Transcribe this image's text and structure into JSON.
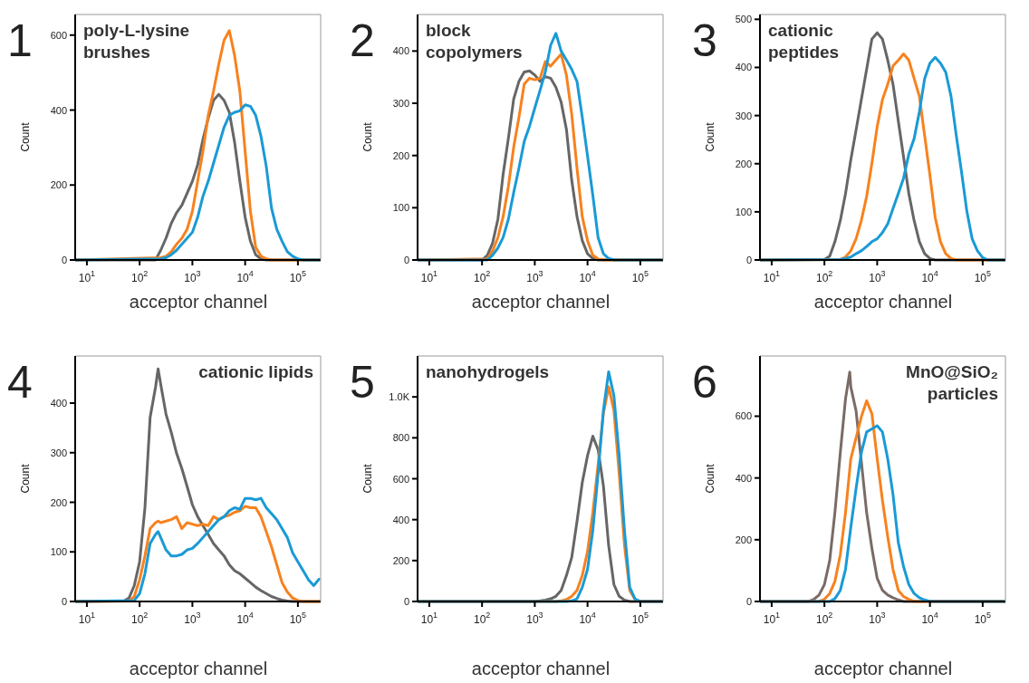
{
  "chart_data": [
    {
      "type": "line",
      "title": "poly-L-lysine brushes",
      "annotations": [
        "1"
      ],
      "xlabel": "acceptor channel",
      "ylabel": "Count",
      "log": "x",
      "xlim": [
        6,
        270000
      ],
      "ylim": [
        0,
        655
      ],
      "xticks": [
        {
          "value": 10,
          "label": "10$^{1}$"
        },
        {
          "value": 100,
          "label": "10$^{2}$"
        },
        {
          "value": 1000,
          "label": "10$^{3}$"
        },
        {
          "value": 10000,
          "label": "10$^{4}$"
        },
        {
          "value": 100000,
          "label": "10$^{5}$"
        }
      ],
      "yticks": [
        0,
        200,
        400,
        600
      ],
      "series": [
        {
          "color": "#666666",
          "x": [
            6,
            200,
            251,
            316,
            398,
            501,
            631,
            794,
            1000,
            1259,
            1585,
            1995,
            2512,
            3162,
            3981,
            5012,
            6310,
            7943,
            10000,
            12589,
            15849,
            19953,
            25119,
            270000
          ],
          "values": [
            0,
            0,
            26,
            58,
            98,
            126,
            146,
            178,
            210,
            254,
            322,
            378,
            426,
            442,
            426,
            394,
            314,
            210,
            114,
            50,
            14,
            3,
            0,
            0
          ]
        },
        {
          "color": "#f7821e",
          "x": [
            6,
            251,
            316,
            398,
            501,
            631,
            794,
            1000,
            1259,
            1585,
            1995,
            2512,
            3162,
            3981,
            5012,
            6310,
            7943,
            10000,
            12589,
            15849,
            19953,
            25119,
            31623,
            270000
          ],
          "values": [
            0,
            6,
            10,
            22,
            42,
            58,
            82,
            130,
            210,
            290,
            386,
            450,
            522,
            586,
            612,
            546,
            450,
            290,
            130,
            34,
            10,
            3,
            0,
            0
          ]
        },
        {
          "color": "#1a9ad6",
          "x": [
            6,
            251,
            316,
            398,
            501,
            631,
            794,
            1000,
            1259,
            1585,
            1995,
            2512,
            3162,
            3981,
            5012,
            6310,
            7943,
            10000,
            12589,
            15849,
            19953,
            25119,
            31623,
            39811,
            50119,
            63096,
            79433,
            100000,
            125893,
            270000
          ],
          "values": [
            0,
            3,
            6,
            14,
            26,
            42,
            58,
            74,
            114,
            170,
            210,
            258,
            306,
            354,
            386,
            394,
            398,
            414,
            410,
            386,
            330,
            250,
            138,
            82,
            50,
            22,
            10,
            3,
            0,
            0
          ]
        }
      ]
    },
    {
      "type": "line",
      "title": "block copolymers",
      "annotations": [
        "2"
      ],
      "xlabel": "acceptor channel",
      "ylabel": "Count",
      "log": "x",
      "xlim": [
        6,
        270000
      ],
      "ylim": [
        0,
        470
      ],
      "xticks": [
        {
          "value": 10,
          "label": "10$^{1}$"
        },
        {
          "value": 100,
          "label": "10$^{2}$"
        },
        {
          "value": 1000,
          "label": "10$^{3}$"
        },
        {
          "value": 10000,
          "label": "10$^{4}$"
        },
        {
          "value": 100000,
          "label": "10$^{5}$"
        }
      ],
      "yticks": [
        0,
        100,
        200,
        300,
        400
      ],
      "series": [
        {
          "color": "#666666",
          "x": [
            6,
            100,
            126,
            158,
            200,
            251,
            316,
            398,
            501,
            631,
            794,
            1000,
            1259,
            1585,
            1995,
            2512,
            3162,
            3981,
            5012,
            6310,
            7943,
            10000,
            12589,
            15849,
            270000
          ],
          "values": [
            0,
            0,
            9,
            32,
            78,
            164,
            233,
            308,
            342,
            360,
            362,
            354,
            342,
            351,
            348,
            331,
            302,
            250,
            153,
            83,
            37,
            12,
            3,
            0,
            0
          ]
        },
        {
          "color": "#f7821e",
          "x": [
            6,
            126,
            158,
            200,
            251,
            316,
            398,
            501,
            631,
            794,
            1000,
            1259,
            1585,
            1995,
            2512,
            3162,
            3981,
            5012,
            6310,
            7943,
            10000,
            12589,
            15849,
            19953,
            270000
          ],
          "values": [
            0,
            2,
            17,
            43,
            83,
            141,
            216,
            273,
            337,
            348,
            345,
            348,
            380,
            371,
            383,
            394,
            354,
            279,
            176,
            83,
            37,
            9,
            2,
            0,
            0
          ]
        },
        {
          "color": "#1a9ad6",
          "x": [
            6,
            126,
            158,
            200,
            251,
            316,
            398,
            501,
            631,
            794,
            1000,
            1259,
            1585,
            1995,
            2512,
            3162,
            3981,
            5012,
            6310,
            7943,
            10000,
            12589,
            15849,
            19953,
            25119,
            31623,
            270000
          ],
          "values": [
            0,
            0,
            9,
            23,
            43,
            78,
            129,
            176,
            227,
            256,
            291,
            325,
            360,
            411,
            434,
            400,
            383,
            365,
            342,
            273,
            199,
            124,
            43,
            12,
            3,
            0,
            0
          ]
        }
      ]
    },
    {
      "type": "line",
      "title": "cationic peptides",
      "annotations": [
        "3"
      ],
      "xlabel": "acceptor channel",
      "ylabel": "Count",
      "log": "x",
      "xlim": [
        6,
        270000
      ],
      "ylim": [
        0,
        510
      ],
      "xticks": [
        {
          "value": 10,
          "label": "10$^{1}$"
        },
        {
          "value": 100,
          "label": "10$^{2}$"
        },
        {
          "value": 1000,
          "label": "10$^{3}$"
        },
        {
          "value": 10000,
          "label": "10$^{4}$"
        },
        {
          "value": 100000,
          "label": "10$^{5}$"
        }
      ],
      "yticks": [
        0,
        100,
        200,
        300,
        400,
        500
      ],
      "series": [
        {
          "color": "#666666",
          "x": [
            6,
            100,
            126,
            158,
            200,
            251,
            316,
            398,
            501,
            631,
            794,
            1000,
            1259,
            1585,
            1995,
            2512,
            3162,
            3981,
            5012,
            6310,
            7943,
            10000,
            12589,
            270000
          ],
          "values": [
            0,
            1,
            8,
            38,
            82,
            138,
            208,
            270,
            333,
            396,
            459,
            472,
            459,
            415,
            365,
            289,
            214,
            138,
            82,
            38,
            13,
            3,
            0,
            0
          ]
        },
        {
          "color": "#f7821e",
          "x": [
            6,
            200,
            251,
            316,
            398,
            501,
            631,
            794,
            1000,
            1259,
            1585,
            1995,
            2512,
            3162,
            3981,
            5012,
            6310,
            7943,
            10000,
            12589,
            15849,
            19953,
            25119,
            31623,
            270000
          ],
          "values": [
            0,
            1,
            6,
            19,
            44,
            82,
            132,
            201,
            277,
            333,
            365,
            403,
            415,
            428,
            415,
            377,
            340,
            258,
            176,
            88,
            38,
            13,
            3,
            0,
            0
          ]
        },
        {
          "color": "#1a9ad6",
          "x": [
            6,
            200,
            251,
            316,
            398,
            501,
            631,
            794,
            1000,
            1259,
            1585,
            1995,
            2512,
            3162,
            3981,
            5012,
            6310,
            7943,
            10000,
            12589,
            15849,
            19953,
            25119,
            31623,
            39811,
            50119,
            63096,
            79433,
            100000,
            125893,
            270000
          ],
          "values": [
            0,
            1,
            3,
            6,
            13,
            19,
            28,
            38,
            44,
            57,
            75,
            107,
            138,
            170,
            220,
            252,
            308,
            377,
            409,
            421,
            409,
            390,
            340,
            258,
            182,
            101,
            44,
            19,
            5,
            0,
            0
          ]
        }
      ]
    },
    {
      "type": "line",
      "title": "cationic lipids",
      "annotations": [
        "4"
      ],
      "xlabel": "acceptor channel",
      "ylabel": "Count",
      "log": "x",
      "xlim": [
        6,
        270000
      ],
      "ylim": [
        0,
        495
      ],
      "xticks": [
        {
          "value": 10,
          "label": "10$^{1}$"
        },
        {
          "value": 100,
          "label": "10$^{2}$"
        },
        {
          "value": 1000,
          "label": "10$^{3}$"
        },
        {
          "value": 10000,
          "label": "10$^{4}$"
        },
        {
          "value": 100000,
          "label": "10$^{5}$"
        }
      ],
      "yticks": [
        0,
        100,
        200,
        300,
        400
      ],
      "series": [
        {
          "color": "#666666",
          "x": [
            6,
            50,
            63,
            79,
            100,
            126,
            158,
            200,
            224,
            251,
            316,
            398,
            501,
            631,
            794,
            1000,
            1259,
            1585,
            1995,
            2512,
            3162,
            3981,
            5012,
            6310,
            7943,
            10000,
            12589,
            15849,
            19953,
            25119,
            31623,
            39811,
            50119,
            63096,
            79433,
            270000
          ],
          "values": [
            0,
            1,
            7,
            32,
            80,
            189,
            371,
            432,
            469,
            438,
            378,
            341,
            299,
            268,
            232,
            195,
            171,
            153,
            135,
            117,
            104,
            92,
            74,
            62,
            56,
            47,
            38,
            29,
            22,
            16,
            10,
            6,
            3,
            1,
            0,
            0
          ]
        },
        {
          "color": "#f7821e",
          "x": [
            6,
            63,
            79,
            100,
            126,
            158,
            200,
            224,
            251,
            316,
            398,
            501,
            631,
            794,
            1000,
            1259,
            1585,
            1995,
            2512,
            3162,
            3981,
            5012,
            6310,
            7943,
            10000,
            12589,
            15849,
            19953,
            25119,
            31623,
            39811,
            50119,
            63096,
            79433,
            100000,
            125893,
            270000
          ],
          "values": [
            0,
            1,
            10,
            44,
            92,
            147,
            159,
            162,
            159,
            162,
            165,
            171,
            147,
            159,
            156,
            153,
            156,
            153,
            171,
            165,
            171,
            174,
            180,
            183,
            192,
            189,
            189,
            171,
            141,
            110,
            74,
            38,
            19,
            7,
            2,
            0,
            0
          ]
        },
        {
          "color": "#1a9ad6",
          "x": [
            6,
            79,
            100,
            126,
            158,
            200,
            224,
            251,
            316,
            398,
            501,
            631,
            794,
            1000,
            1259,
            1585,
            1995,
            2512,
            3162,
            3981,
            5012,
            6310,
            7943,
            10000,
            12589,
            15849,
            19953,
            25119,
            31623,
            39811,
            50119,
            63096,
            79433,
            100000,
            125893,
            158489,
            199526,
            251189
          ],
          "values": [
            0,
            2,
            16,
            56,
            117,
            135,
            141,
            129,
            104,
            92,
            92,
            95,
            104,
            107,
            117,
            129,
            141,
            153,
            165,
            171,
            183,
            189,
            186,
            208,
            208,
            205,
            208,
            189,
            177,
            165,
            147,
            129,
            98,
            80,
            62,
            44,
            32,
            45
          ]
        }
      ]
    },
    {
      "type": "line",
      "title": "nanohydrogels",
      "annotations": [
        "5"
      ],
      "xlabel": "acceptor channel",
      "ylabel": "Count",
      "log": "x",
      "xlim": [
        6,
        270000
      ],
      "ylim": [
        0,
        1200
      ],
      "xticks": [
        {
          "value": 10,
          "label": "10$^{1}$"
        },
        {
          "value": 100,
          "label": "10$^{2}$"
        },
        {
          "value": 1000,
          "label": "10$^{3}$"
        },
        {
          "value": 10000,
          "label": "10$^{4}$"
        },
        {
          "value": 100000,
          "label": "10$^{5}$"
        }
      ],
      "yticks": [
        0,
        200,
        400,
        600,
        800,
        {
          "value": 1000,
          "label": "1.0K"
        }
      ],
      "series": [
        {
          "color": "#666666",
          "x": [
            6,
            1000,
            1259,
            1585,
            1995,
            2512,
            3162,
            3981,
            5012,
            6310,
            7943,
            10000,
            12589,
            15849,
            19953,
            25119,
            31623,
            39811,
            50119,
            63096,
            270000
          ],
          "values": [
            0,
            0,
            3,
            7,
            13,
            25,
            54,
            127,
            215,
            391,
            581,
            713,
            808,
            742,
            567,
            274,
            83,
            25,
            7,
            0,
            0
          ]
        },
        {
          "color": "#f7821e",
          "x": [
            6,
            2512,
            3162,
            3981,
            5012,
            6310,
            7943,
            10000,
            12589,
            15849,
            19953,
            25119,
            31623,
            39811,
            50119,
            63096,
            79433,
            100000,
            270000
          ],
          "values": [
            0,
            0,
            3,
            10,
            25,
            54,
            127,
            245,
            435,
            669,
            918,
            1050,
            933,
            625,
            274,
            54,
            10,
            0,
            0
          ]
        },
        {
          "color": "#1a9ad6",
          "x": [
            6,
            3981,
            5012,
            6310,
            7943,
            10000,
            12589,
            15849,
            19953,
            25119,
            31623,
            39811,
            50119,
            63096,
            79433,
            100000,
            270000
          ],
          "values": [
            0,
            0,
            3,
            13,
            69,
            157,
            347,
            625,
            933,
            1123,
            1006,
            713,
            347,
            69,
            13,
            0,
            0
          ]
        }
      ]
    },
    {
      "type": "line",
      "title": "MnO@SiO₂ particles",
      "annotations": [
        "6"
      ],
      "xlabel": "acceptor channel",
      "ylabel": "Count",
      "log": "x",
      "xlim": [
        6,
        270000
      ],
      "ylim": [
        0,
        795
      ],
      "xticks": [
        {
          "value": 10,
          "label": "10$^{1}$"
        },
        {
          "value": 100,
          "label": "10$^{2}$"
        },
        {
          "value": 1000,
          "label": "10$^{3}$"
        },
        {
          "value": 10000,
          "label": "10$^{4}$"
        },
        {
          "value": 100000,
          "label": "10$^{5}$"
        }
      ],
      "yticks": [
        0,
        200,
        400,
        600
      ],
      "series": [
        {
          "color": "#7a6b66",
          "x": [
            6,
            50,
            63,
            79,
            100,
            126,
            158,
            200,
            251,
            302,
            316,
            398,
            501,
            631,
            794,
            1000,
            1259,
            1585,
            1995,
            2512,
            3162,
            270000
          ],
          "values": [
            0,
            0,
            7,
            21,
            55,
            133,
            288,
            482,
            656,
            743,
            695,
            617,
            453,
            288,
            172,
            75,
            36,
            21,
            12,
            5,
            0,
            0
          ]
        },
        {
          "color": "#f7821e",
          "x": [
            6,
            79,
            100,
            126,
            158,
            200,
            251,
            316,
            398,
            501,
            631,
            794,
            1000,
            1259,
            1585,
            1995,
            2512,
            3162,
            3981,
            5012,
            270000
          ],
          "values": [
            0,
            0,
            7,
            26,
            65,
            152,
            288,
            462,
            530,
            598,
            650,
            608,
            462,
            327,
            210,
            104,
            36,
            16,
            7,
            0,
            0
          ]
        },
        {
          "color": "#1a9ad6",
          "x": [
            6,
            126,
            158,
            200,
            251,
            316,
            398,
            501,
            631,
            794,
            1000,
            1259,
            1585,
            1995,
            2512,
            3162,
            3981,
            5012,
            6310,
            7943,
            10000,
            270000
          ],
          "values": [
            0,
            0,
            9,
            36,
            104,
            240,
            366,
            482,
            549,
            559,
            569,
            549,
            462,
            346,
            191,
            113,
            55,
            26,
            12,
            5,
            0,
            0
          ]
        }
      ]
    }
  ]
}
